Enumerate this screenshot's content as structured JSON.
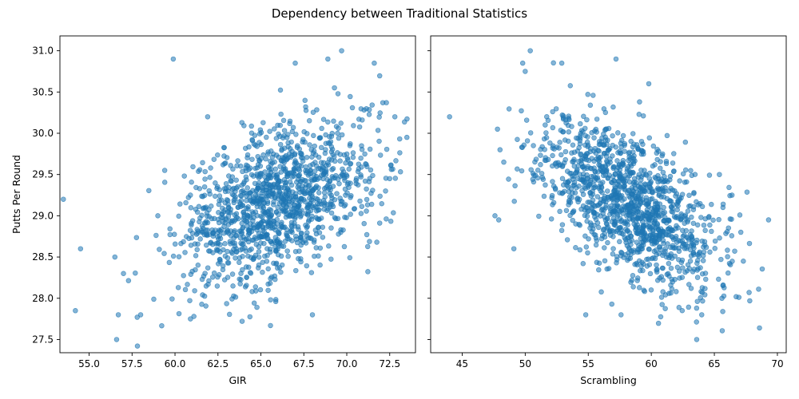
{
  "figure": {
    "title": "Dependency between Traditional Statistics",
    "marker_color": "#1f77b4"
  },
  "chart_data": [
    {
      "type": "scatter",
      "xlabel": "GIR",
      "ylabel": "Putts Per Round",
      "xlim": [
        53.3,
        74.0
      ],
      "ylim": [
        27.34,
        31.18
      ],
      "xticks": [
        "55.0",
        "57.5",
        "60.0",
        "62.5",
        "65.0",
        "67.5",
        "70.0",
        "72.5"
      ],
      "yticks": [
        "27.5",
        "28.0",
        "28.5",
        "29.0",
        "29.5",
        "30.0",
        "30.5",
        "31.0"
      ],
      "points_generated": {
        "count": 1300,
        "x_mean": 66.0,
        "x_sd": 2.9,
        "y_mean": 29.15,
        "y_sd": 0.5,
        "corr": 0.45,
        "seed": 7
      },
      "points_explicit": [
        [
          53.5,
          29.2
        ],
        [
          54.5,
          28.6
        ],
        [
          54.2,
          27.85
        ],
        [
          56.6,
          27.5
        ],
        [
          56.7,
          27.8
        ],
        [
          56.5,
          28.5
        ],
        [
          57.0,
          28.3
        ],
        [
          57.8,
          27.77
        ],
        [
          58.0,
          27.8
        ],
        [
          59.9,
          30.9
        ],
        [
          68.9,
          30.9
        ],
        [
          69.7,
          31.0
        ],
        [
          67.0,
          30.85
        ],
        [
          71.6,
          30.85
        ],
        [
          61.9,
          30.2
        ],
        [
          61.1,
          27.78
        ],
        [
          60.9,
          27.75
        ],
        [
          68.0,
          27.8
        ],
        [
          73.5,
          29.95
        ],
        [
          72.8,
          30.2
        ],
        [
          59.4,
          29.55
        ],
        [
          72.5,
          29.45
        ],
        [
          59.0,
          29.0
        ]
      ]
    },
    {
      "type": "scatter",
      "xlabel": "Scrambling",
      "ylabel": "",
      "xlim": [
        42.5,
        70.7
      ],
      "ylim": [
        27.34,
        31.18
      ],
      "xticks": [
        "45",
        "50",
        "55",
        "60",
        "65",
        "70"
      ],
      "yticks": [],
      "points_generated": {
        "count": 1300,
        "x_mean": 58.3,
        "x_sd": 3.4,
        "y_mean": 29.15,
        "y_sd": 0.5,
        "corr": -0.55,
        "seed": 11
      },
      "points_explicit": [
        [
          44.0,
          30.2
        ],
        [
          50.4,
          31.0
        ],
        [
          49.8,
          30.85
        ],
        [
          50.0,
          30.75
        ],
        [
          52.9,
          30.85
        ],
        [
          57.2,
          30.9
        ],
        [
          59.8,
          30.6
        ],
        [
          69.3,
          28.95
        ],
        [
          67.3,
          28.45
        ],
        [
          67.1,
          28.8
        ],
        [
          65.6,
          28.0
        ],
        [
          63.6,
          27.5
        ],
        [
          64.0,
          27.8
        ],
        [
          54.8,
          27.8
        ],
        [
          57.6,
          27.8
        ],
        [
          47.6,
          29.0
        ],
        [
          47.9,
          28.95
        ],
        [
          49.1,
          28.6
        ],
        [
          48.3,
          29.65
        ],
        [
          48.0,
          29.8
        ],
        [
          47.8,
          30.05
        ],
        [
          66.4,
          29.25
        ],
        [
          65.4,
          29.5
        ]
      ]
    }
  ]
}
